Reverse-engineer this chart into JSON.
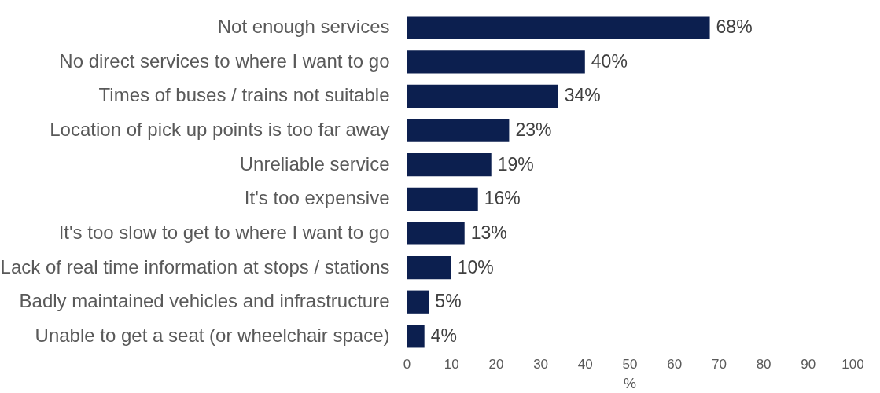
{
  "chart_data": {
    "type": "bar",
    "orientation": "horizontal",
    "xlabel": "%",
    "categories": [
      "Not enough services",
      "No direct services to where I want to go",
      "Times of buses / trains not suitable",
      "Location of pick up points is too far away",
      "Unreliable service",
      "It's too expensive",
      "It's too slow to get to where I want to go",
      "Lack of real time information at stops / stations",
      "Badly maintained vehicles and infrastructure",
      "Unable to get a seat (or wheelchair space)"
    ],
    "values": [
      68,
      40,
      34,
      23,
      19,
      16,
      13,
      10,
      5,
      4
    ],
    "value_labels": [
      "68%",
      "40%",
      "34%",
      "23%",
      "19%",
      "16%",
      "13%",
      "10%",
      "5%",
      "4%"
    ],
    "color": "#0c1f4f",
    "xlim": [
      0,
      100
    ],
    "xticks": [
      0,
      10,
      20,
      30,
      40,
      50,
      60,
      70,
      80,
      90,
      100
    ],
    "grid": false
  }
}
